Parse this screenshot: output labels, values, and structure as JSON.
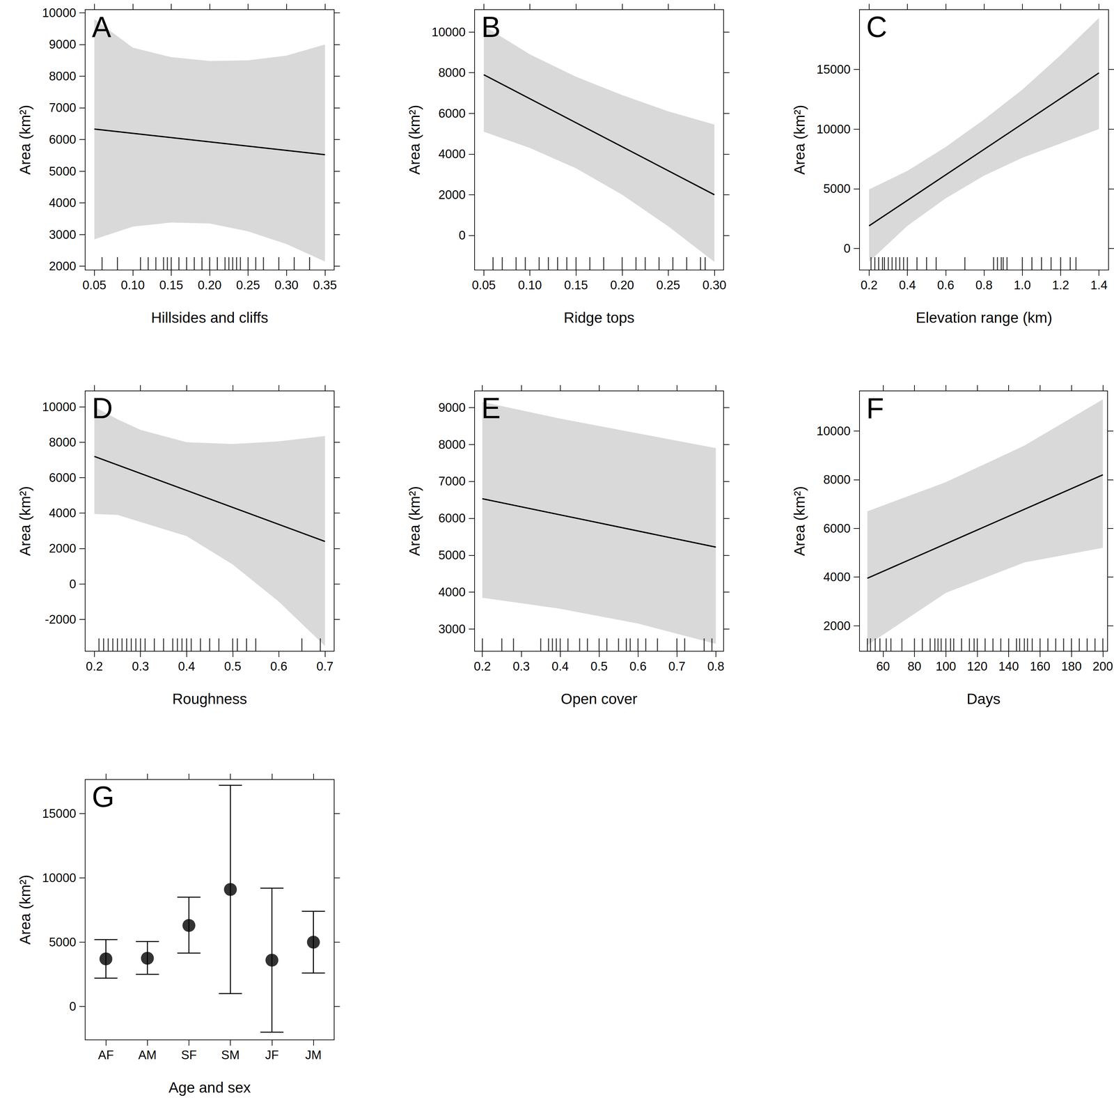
{
  "chart_data": [
    {
      "type": "line",
      "title": "A",
      "xlabel": "Hillsides and cliffs",
      "ylabel": "Area (km²)",
      "color": "#000000",
      "xlim": [
        0.038,
        0.362
      ],
      "ylim": [
        1880,
        10100
      ],
      "xticks": [
        0.05,
        {
          "value": 0.1,
          "label": "0.10"
        },
        0.15,
        {
          "value": 0.2,
          "label": "0.20"
        },
        0.25,
        {
          "value": 0.3,
          "label": "0.30"
        },
        0.35
      ],
      "yticks": [
        2000,
        3000,
        4000,
        5000,
        6000,
        7000,
        8000,
        9000,
        10000
      ],
      "x": [
        0.05,
        0.35
      ],
      "values": [
        6330,
        5520
      ],
      "band": {
        "x": [
          0.05,
          0.1,
          0.15,
          0.2,
          0.25,
          0.3,
          0.35
        ],
        "lower": [
          2850,
          3250,
          3380,
          3350,
          3100,
          2700,
          2150
        ],
        "upper": [
          9800,
          8900,
          8600,
          8480,
          8500,
          8650,
          9000
        ]
      },
      "rug": [
        0.06,
        0.08,
        0.11,
        0.12,
        0.13,
        0.14,
        0.145,
        0.15,
        0.16,
        0.17,
        0.18,
        0.19,
        0.2,
        0.21,
        0.22,
        0.225,
        0.23,
        0.235,
        0.24,
        0.25,
        0.26,
        0.27,
        0.29,
        0.31,
        0.33
      ]
    },
    {
      "type": "line",
      "title": "B",
      "xlabel": "Ridge tops",
      "ylabel": "Area (km²)",
      "color": "#000000",
      "xlim": [
        0.04,
        0.31
      ],
      "ylim": [
        -1700,
        11100
      ],
      "xticks": [
        0.05,
        {
          "value": 0.1,
          "label": "0.10"
        },
        0.15,
        {
          "value": 0.2,
          "label": "0.20"
        },
        0.25,
        {
          "value": 0.3,
          "label": "0.30"
        }
      ],
      "yticks": [
        0,
        2000,
        4000,
        6000,
        8000,
        10000
      ],
      "x": [
        0.05,
        0.3
      ],
      "values": [
        7900,
        2000
      ],
      "band": {
        "x": [
          0.05,
          0.1,
          0.15,
          0.2,
          0.25,
          0.3
        ],
        "lower": [
          5100,
          4300,
          3300,
          2000,
          450,
          -1300
        ],
        "upper": [
          10300,
          8900,
          7800,
          6900,
          6100,
          5450
        ]
      },
      "rug": [
        0.06,
        0.07,
        0.085,
        0.095,
        0.11,
        0.12,
        0.13,
        0.14,
        0.15,
        0.165,
        0.18,
        0.2,
        0.215,
        0.225,
        0.24,
        0.255,
        0.27,
        0.285,
        0.29
      ]
    },
    {
      "type": "line",
      "title": "C",
      "xlabel": "Elevation range (km)",
      "ylabel": "Area (km²)",
      "color": "#000000",
      "xlim": [
        0.15,
        1.45
      ],
      "ylim": [
        -1800,
        20000
      ],
      "xticks": [
        0.2,
        0.4,
        0.6,
        0.8,
        {
          "value": 1.0,
          "label": "1.0"
        },
        1.2,
        1.4
      ],
      "yticks": [
        0,
        5000,
        10000,
        15000
      ],
      "x": [
        0.2,
        1.4
      ],
      "values": [
        1900,
        14700
      ],
      "band": {
        "x": [
          0.2,
          0.4,
          0.6,
          0.8,
          1.0,
          1.2,
          1.4
        ],
        "lower": [
          -1100,
          1900,
          4200,
          6100,
          7600,
          8800,
          10000
        ],
        "upper": [
          4950,
          6500,
          8500,
          10800,
          13300,
          16200,
          19300
        ]
      },
      "rug": [
        0.21,
        0.23,
        0.25,
        0.27,
        0.28,
        0.3,
        0.32,
        0.34,
        0.36,
        0.38,
        0.4,
        0.45,
        0.5,
        0.55,
        0.7,
        0.85,
        0.87,
        0.89,
        0.9,
        0.92,
        1.0,
        1.05,
        1.1,
        1.15,
        1.2,
        1.25,
        1.28
      ]
    },
    {
      "type": "line",
      "title": "D",
      "xlabel": "Roughness",
      "ylabel": "Area (km²)",
      "color": "#000000",
      "xlim": [
        0.18,
        0.72
      ],
      "ylim": [
        -3800,
        10900
      ],
      "xticks": [
        0.2,
        0.3,
        0.4,
        0.5,
        0.6,
        0.7
      ],
      "yticks": [
        -2000,
        0,
        2000,
        4000,
        6000,
        8000,
        10000
      ],
      "x": [
        0.2,
        0.7
      ],
      "values": [
        7200,
        2400
      ],
      "band": {
        "x": [
          0.2,
          0.25,
          0.3,
          0.4,
          0.5,
          0.6,
          0.7
        ],
        "lower": [
          3950,
          3900,
          3500,
          2700,
          1100,
          -1000,
          -3500
        ],
        "upper": [
          10000,
          9300,
          8700,
          8000,
          7900,
          8050,
          8350
        ]
      },
      "rug": [
        0.21,
        0.22,
        0.23,
        0.24,
        0.25,
        0.26,
        0.27,
        0.28,
        0.29,
        0.3,
        0.31,
        0.33,
        0.35,
        0.37,
        0.38,
        0.39,
        0.4,
        0.41,
        0.43,
        0.45,
        0.47,
        0.5,
        0.51,
        0.53,
        0.55,
        0.65,
        0.69
      ]
    },
    {
      "type": "line",
      "title": "E",
      "xlabel": "Open cover",
      "ylabel": "Area (km²)",
      "color": "#000000",
      "xlim": [
        0.18,
        0.82
      ],
      "ylim": [
        2400,
        9450
      ],
      "xticks": [
        0.2,
        0.3,
        0.4,
        0.5,
        0.6,
        0.7,
        0.8
      ],
      "yticks": [
        3000,
        4000,
        5000,
        6000,
        7000,
        8000,
        9000
      ],
      "x": [
        0.2,
        0.8
      ],
      "values": [
        6530,
        5220
      ],
      "band": {
        "x": [
          0.2,
          0.4,
          0.6,
          0.8
        ],
        "lower": [
          3850,
          3550,
          3150,
          2600
        ],
        "upper": [
          9150,
          8700,
          8300,
          7900
        ]
      },
      "rug": [
        0.2,
        0.25,
        0.28,
        0.35,
        0.37,
        0.38,
        0.39,
        0.4,
        0.42,
        0.45,
        0.47,
        0.5,
        0.52,
        0.55,
        0.57,
        0.58,
        0.6,
        0.62,
        0.65,
        0.7,
        0.72,
        0.77,
        0.79
      ]
    },
    {
      "type": "line",
      "title": "F",
      "xlabel": "Days",
      "ylabel": "Area (km²)",
      "color": "#000000",
      "xlim": [
        45,
        203
      ],
      "ylim": [
        950,
        11650
      ],
      "xticks": [
        60,
        80,
        100,
        120,
        140,
        160,
        180,
        200
      ],
      "yticks": [
        2000,
        4000,
        6000,
        8000,
        10000
      ],
      "x": [
        50,
        200
      ],
      "values": [
        3950,
        8200
      ],
      "band": {
        "x": [
          50,
          100,
          150,
          200
        ],
        "lower": [
          1200,
          3350,
          4600,
          5200
        ],
        "upper": [
          6700,
          7900,
          9400,
          11300
        ]
      },
      "rug": [
        50,
        52,
        55,
        58,
        62,
        65,
        72,
        80,
        85,
        90,
        93,
        95,
        97,
        100,
        103,
        105,
        110,
        115,
        118,
        120,
        125,
        130,
        135,
        140,
        145,
        147,
        150,
        152,
        155,
        160,
        165,
        170,
        175,
        180,
        185,
        190,
        195,
        200
      ]
    },
    {
      "type": "scatter",
      "title": "G",
      "xlabel": "Age and sex",
      "ylabel": "Area (km²)",
      "color": "#000000",
      "marker": "circle",
      "ylim": [
        -2600,
        17650
      ],
      "yticks": [
        0,
        5000,
        10000,
        15000
      ],
      "categories": [
        "AF",
        "AM",
        "SF",
        "SM",
        "JF",
        "JM"
      ],
      "values": [
        3700,
        3750,
        6300,
        9100,
        3600,
        5000
      ],
      "lower": [
        2200,
        2500,
        4150,
        1000,
        -2000,
        2600
      ],
      "upper": [
        5200,
        5050,
        8500,
        17200,
        9200,
        7400
      ]
    }
  ]
}
